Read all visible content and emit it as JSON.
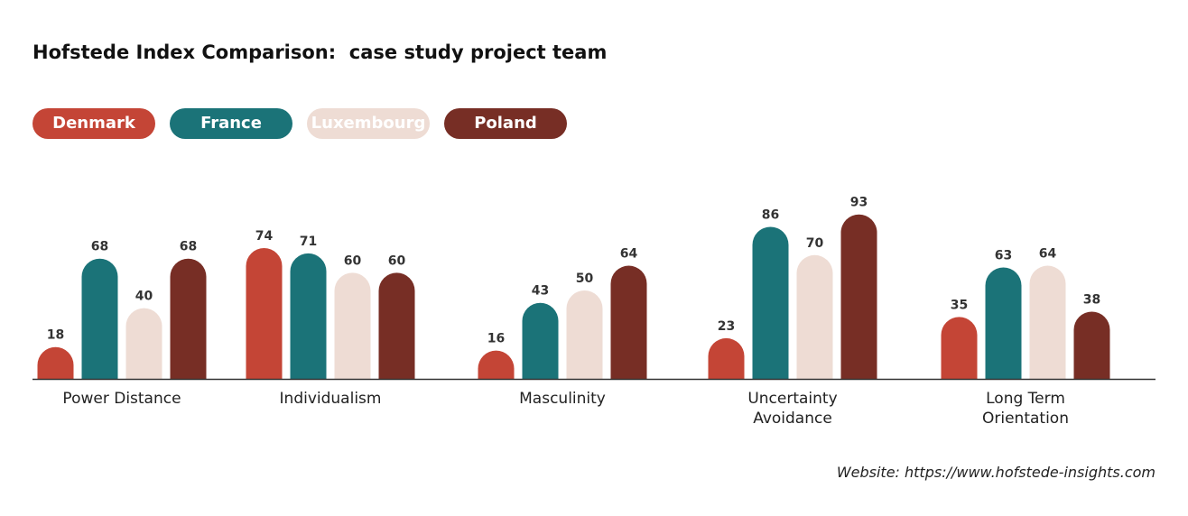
{
  "chart_data": {
    "type": "bar",
    "title": "Hofstede Index Comparison:  case study project team",
    "categories": [
      "Power Distance",
      "Individualism",
      "Masculinity",
      "Uncertainty Avoidance",
      "Long Term Orientation"
    ],
    "series": [
      {
        "name": "Denmark",
        "color": "#c44536",
        "values": [
          18,
          74,
          16,
          23,
          35
        ]
      },
      {
        "name": "France",
        "color": "#1b7378",
        "values": [
          68,
          71,
          43,
          86,
          63
        ]
      },
      {
        "name": "Luxembourg",
        "color": "#eedcd4",
        "values": [
          40,
          60,
          50,
          70,
          64
        ]
      },
      {
        "name": "Poland",
        "color": "#772e25",
        "values": [
          68,
          60,
          64,
          93,
          38
        ]
      }
    ],
    "legend_position": "top-left",
    "grid": false,
    "ylim": [
      0,
      100
    ]
  },
  "source_text": "Website: https://www.hofstede-insights.com"
}
